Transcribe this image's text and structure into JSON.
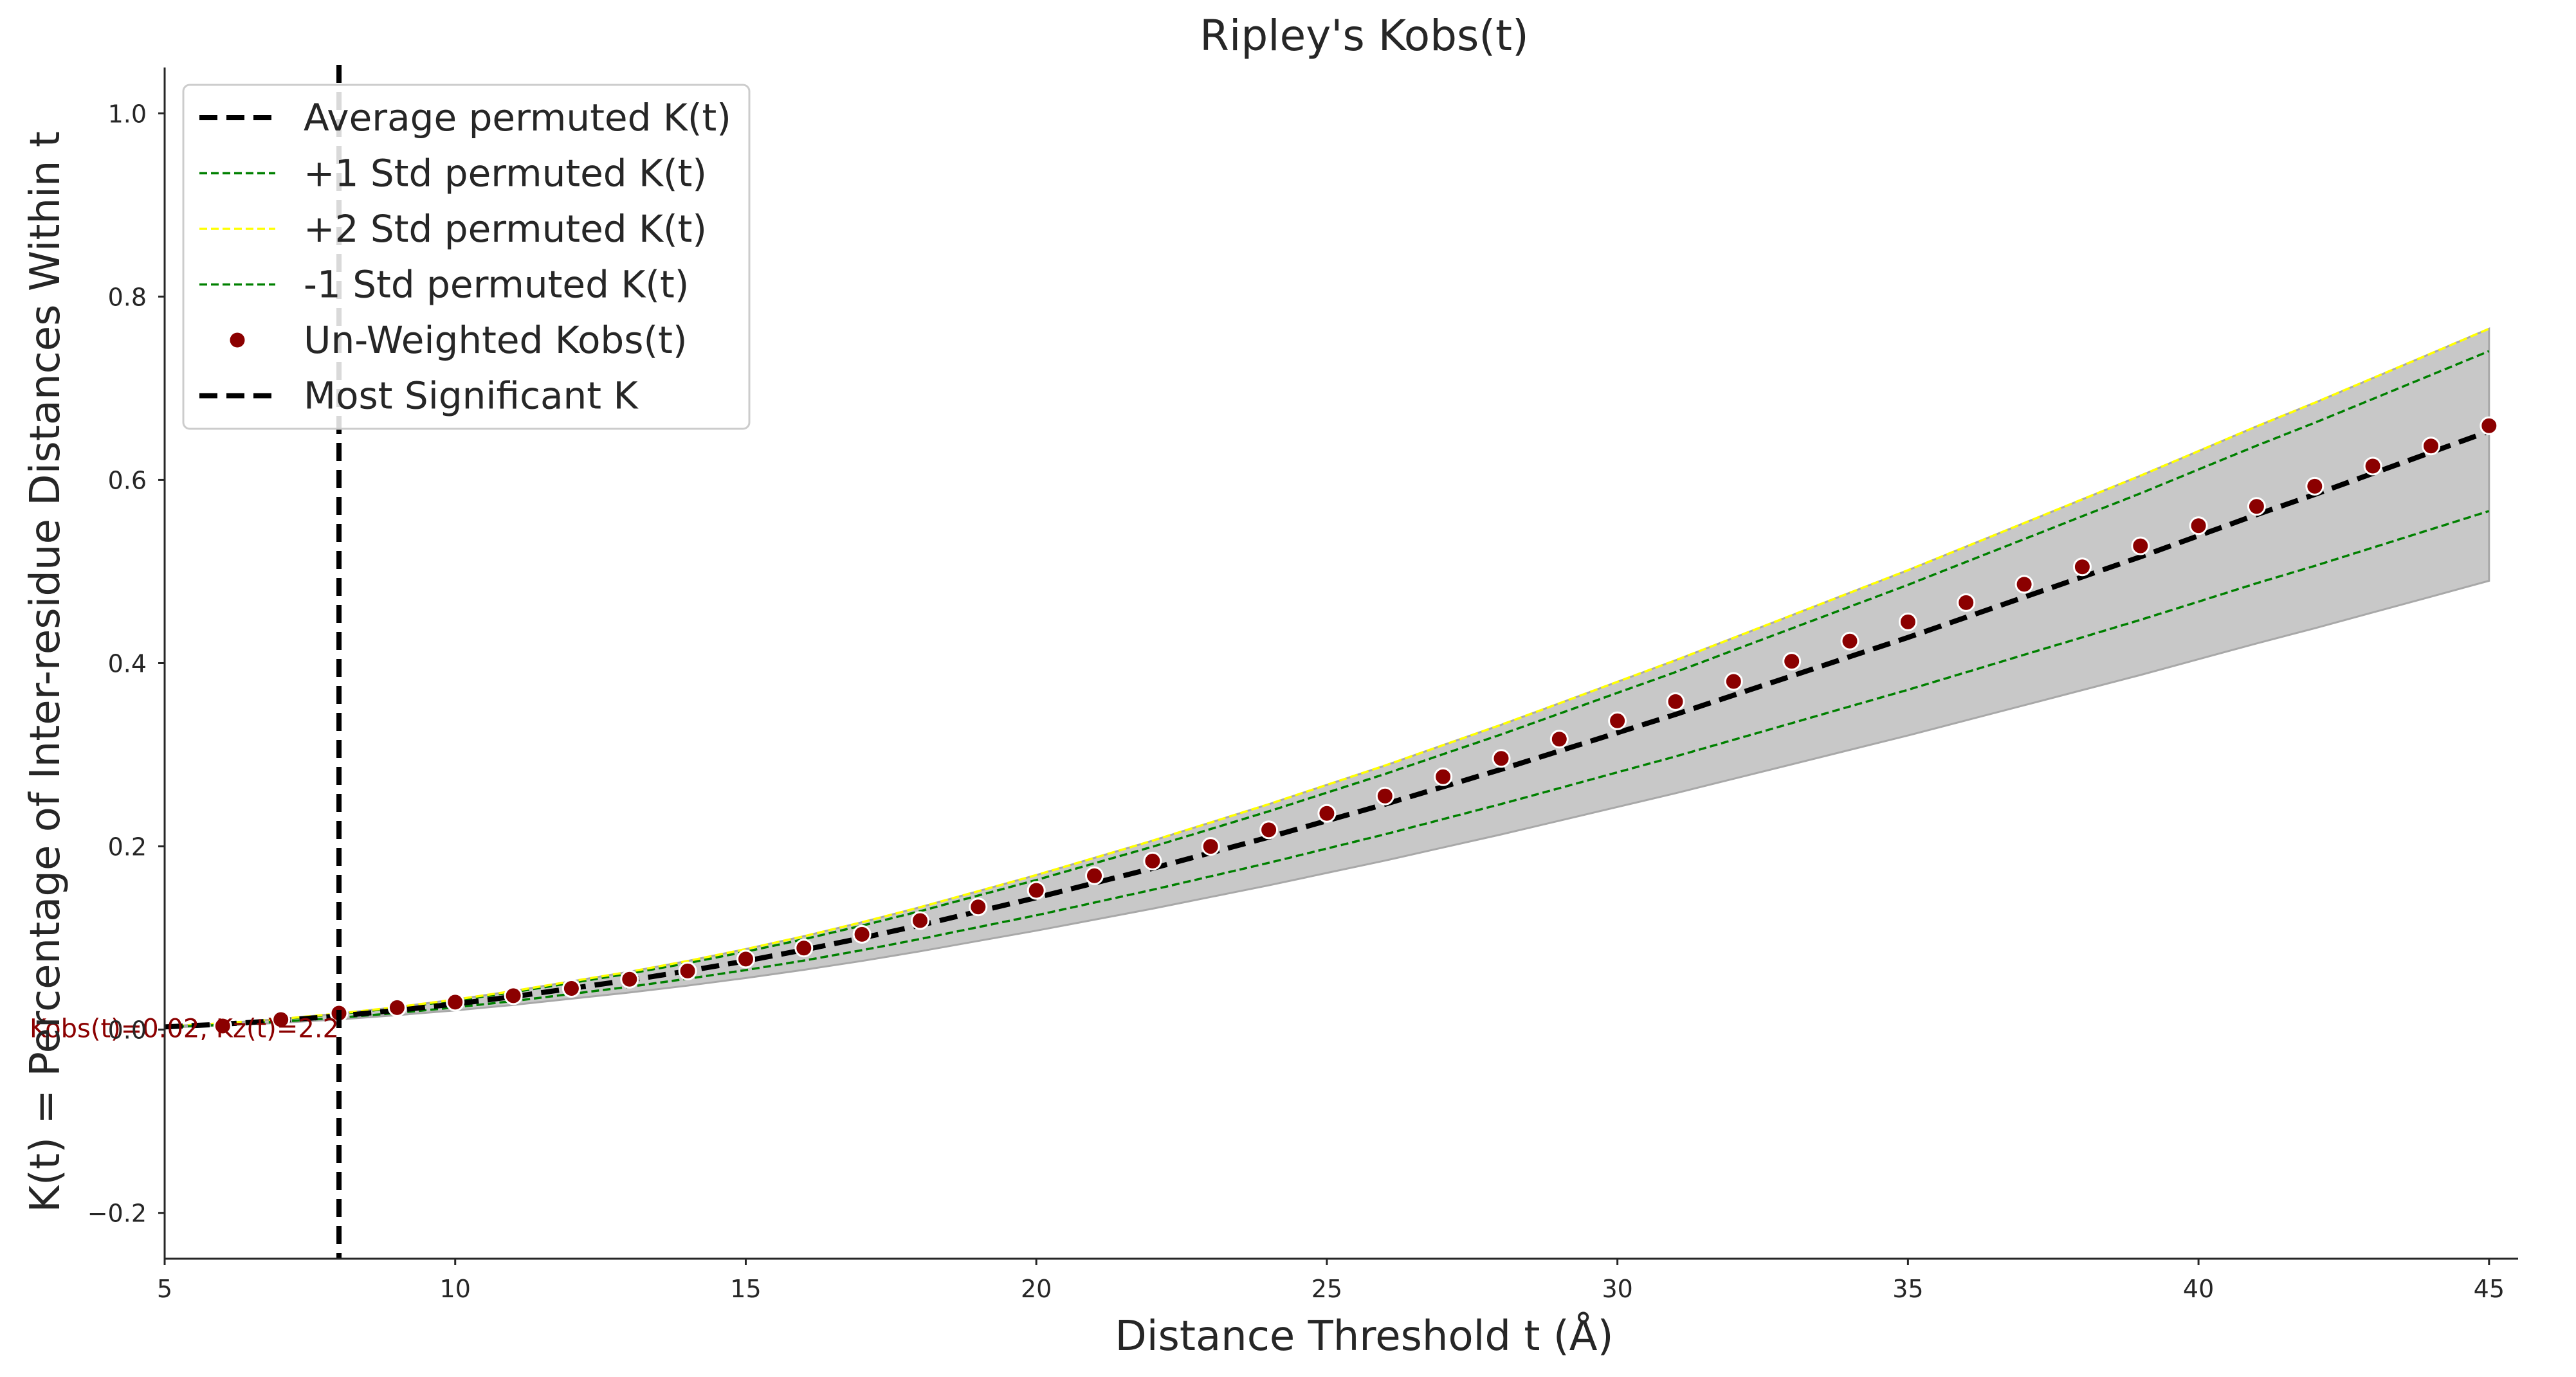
{
  "chart_data": {
    "type": "line",
    "title": "Ripley's Kobs(t)",
    "xlabel": "Distance Threshold t (Å)",
    "ylabel": "K(t) = Percentage of Inter-residue Distances Within t",
    "xlim": [
      5,
      45.5
    ],
    "ylim": [
      -0.25,
      1.05
    ],
    "xticks": [
      5,
      10,
      15,
      20,
      25,
      30,
      35,
      40,
      45
    ],
    "yticks": [
      -0.2,
      0.0,
      0.2,
      0.4,
      0.6,
      0.8,
      1.0
    ],
    "ytick_labels": [
      "−0.2",
      "0.0",
      "0.2",
      "0.4",
      "0.6",
      "0.8",
      "1.0"
    ],
    "grid": false,
    "legend_position": "upper-left",
    "x": [
      5,
      6,
      7,
      8,
      9,
      10,
      11,
      12,
      13,
      14,
      15,
      16,
      17,
      18,
      19,
      20,
      21,
      22,
      23,
      24,
      25,
      26,
      27,
      28,
      29,
      30,
      31,
      32,
      33,
      34,
      35,
      36,
      37,
      38,
      39,
      40,
      41,
      42,
      43,
      44,
      45
    ],
    "series": [
      {
        "name": "Average permuted K(t)",
        "style": "dashed-thick",
        "color": "#000000",
        "values": [
          0.003,
          0.006,
          0.01,
          0.015,
          0.021,
          0.028,
          0.036,
          0.045,
          0.054,
          0.064,
          0.075,
          0.087,
          0.1,
          0.114,
          0.129,
          0.144,
          0.16,
          0.176,
          0.193,
          0.21,
          0.228,
          0.246,
          0.265,
          0.284,
          0.304,
          0.324,
          0.344,
          0.365,
          0.386,
          0.407,
          0.428,
          0.45,
          0.472,
          0.494,
          0.516,
          0.539,
          0.562,
          0.584,
          0.607,
          0.63,
          0.653
        ]
      },
      {
        "name": "+1 Std permuted K(t)",
        "style": "dashed-thin",
        "color": "#008000",
        "values": [
          0.0034,
          0.0068,
          0.0113,
          0.017,
          0.0238,
          0.0317,
          0.0408,
          0.051,
          0.0612,
          0.0726,
          0.0851,
          0.0987,
          0.1135,
          0.1293,
          0.1463,
          0.1633,
          0.1815,
          0.1996,
          0.2189,
          0.2382,
          0.2586,
          0.279,
          0.3006,
          0.3221,
          0.3448,
          0.3675,
          0.3902,
          0.414,
          0.4378,
          0.4616,
          0.4854,
          0.5104,
          0.5353,
          0.5603,
          0.5852,
          0.6113,
          0.6373,
          0.6623,
          0.6883,
          0.7144,
          0.7405
        ]
      },
      {
        "name": "+2 Std permuted K(t)",
        "style": "dashed-thin",
        "color": "#ffff00",
        "values": [
          0.0035,
          0.007,
          0.0117,
          0.0176,
          0.0246,
          0.0328,
          0.0421,
          0.0527,
          0.0632,
          0.0749,
          0.0879,
          0.1019,
          0.1172,
          0.1336,
          0.1511,
          0.1687,
          0.1874,
          0.2062,
          0.2261,
          0.246,
          0.2671,
          0.2882,
          0.3105,
          0.3327,
          0.3561,
          0.3796,
          0.4031,
          0.4276,
          0.4522,
          0.4768,
          0.5014,
          0.5271,
          0.5529,
          0.5787,
          0.6045,
          0.6314,
          0.6583,
          0.6841,
          0.711,
          0.7379,
          0.7649
        ]
      },
      {
        "name": "-1 Std permuted K(t)",
        "style": "dashed-thin",
        "color": "#008000",
        "values": [
          0.0026,
          0.0052,
          0.0087,
          0.013,
          0.0182,
          0.0243,
          0.0312,
          0.039,
          0.0468,
          0.0555,
          0.065,
          0.0754,
          0.0867,
          0.0989,
          0.1119,
          0.1248,
          0.1387,
          0.1526,
          0.1673,
          0.182,
          0.1976,
          0.2132,
          0.2297,
          0.2462,
          0.2635,
          0.2808,
          0.2981,
          0.3163,
          0.3345,
          0.3527,
          0.3709,
          0.39,
          0.4091,
          0.4281,
          0.4472,
          0.4671,
          0.4871,
          0.5061,
          0.5261,
          0.546,
          0.5659
        ]
      },
      {
        "name": "Un-Weighted Kobs(t)",
        "style": "markers",
        "color": "#8b0000",
        "x": [
          6,
          7,
          8,
          9,
          10,
          11,
          12,
          13,
          14,
          15,
          16,
          17,
          18,
          19,
          20,
          21,
          22,
          23,
          24,
          25,
          26,
          27,
          28,
          29,
          30,
          31,
          32,
          33,
          34,
          35,
          36,
          37,
          38,
          39,
          40,
          41,
          42,
          43,
          44,
          45
        ],
        "values": [
          0.004,
          0.011,
          0.018,
          0.024,
          0.03,
          0.037,
          0.045,
          0.055,
          0.064,
          0.077,
          0.089,
          0.104,
          0.119,
          0.134,
          0.152,
          0.168,
          0.184,
          0.2,
          0.218,
          0.236,
          0.255,
          0.276,
          0.296,
          0.317,
          0.337,
          0.358,
          0.38,
          0.402,
          0.424,
          0.445,
          0.466,
          0.486,
          0.505,
          0.528,
          0.55,
          0.571,
          0.593,
          0.615,
          0.637,
          0.659
        ]
      }
    ],
    "band": {
      "lower": [
        0.0022,
        0.0045,
        0.0075,
        0.0112,
        0.0158,
        0.021,
        0.027,
        0.0338,
        0.0405,
        0.048,
        0.0563,
        0.0653,
        0.075,
        0.0855,
        0.0968,
        0.108,
        0.12,
        0.132,
        0.1448,
        0.1575,
        0.171,
        0.1845,
        0.1988,
        0.213,
        0.228,
        0.243,
        0.258,
        0.2738,
        0.2895,
        0.3053,
        0.321,
        0.3375,
        0.354,
        0.3705,
        0.387,
        0.4043,
        0.4215,
        0.438,
        0.4553,
        0.4725,
        0.4898
      ],
      "upper": [
        0.0035,
        0.007,
        0.0117,
        0.0176,
        0.0246,
        0.0328,
        0.0421,
        0.0527,
        0.0632,
        0.0749,
        0.0879,
        0.1019,
        0.1172,
        0.1336,
        0.1511,
        0.1687,
        0.1874,
        0.2062,
        0.2261,
        0.246,
        0.2671,
        0.2882,
        0.3105,
        0.3327,
        0.3561,
        0.3796,
        0.4031,
        0.4276,
        0.4522,
        0.4768,
        0.5014,
        0.5271,
        0.5529,
        0.5787,
        0.6045,
        0.6314,
        0.6583,
        0.6841,
        0.711,
        0.7379,
        0.7649
      ],
      "color": "#c8c8c8"
    },
    "vline": {
      "name": "Most Significant K",
      "x": 8,
      "color": "#000000"
    },
    "annotation": {
      "text": "Kobs(t)=0.02, Kz(t)=2.2",
      "x": 8,
      "y": 0.0,
      "color": "#8b0000"
    }
  }
}
